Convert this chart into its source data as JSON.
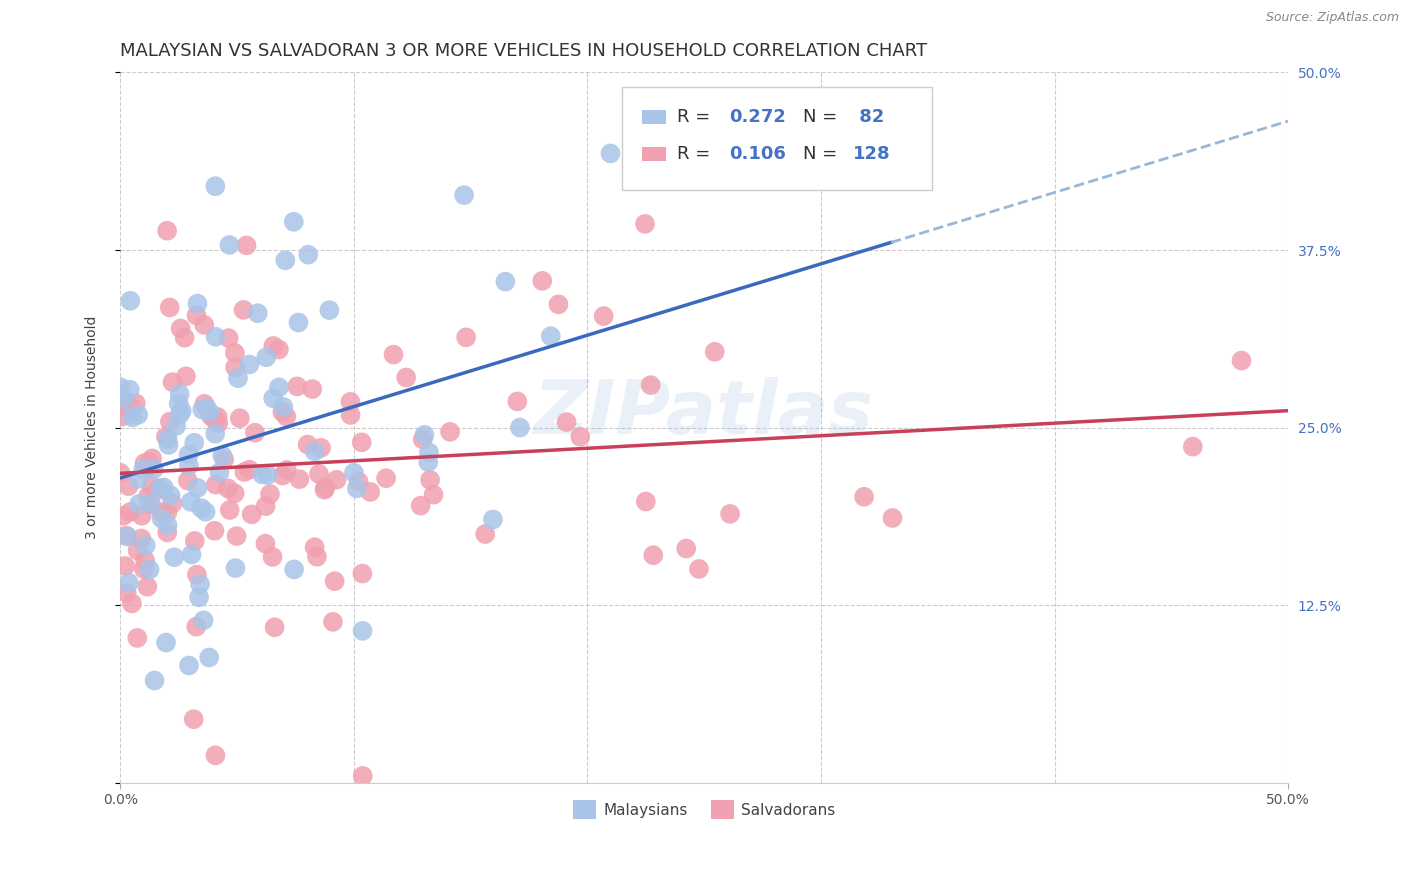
{
  "title": "MALAYSIAN VS SALVADORAN 3 OR MORE VEHICLES IN HOUSEHOLD CORRELATION CHART",
  "source": "Source: ZipAtlas.com",
  "ylabel": "3 or more Vehicles in Household",
  "xmin": 0.0,
  "xmax": 0.5,
  "ymin": 0.0,
  "ymax": 0.5,
  "ytick_values": [
    0.0,
    0.125,
    0.25,
    0.375,
    0.5
  ],
  "grid_color": "#cccccc",
  "background_color": "#ffffff",
  "malaysian_color": "#a8c4e8",
  "salvadoran_color": "#f0a0b0",
  "malaysian_line_color": "#3a6abf",
  "salvadoran_line_color": "#c8405a",
  "dashed_line_color": "#99b8d8",
  "R_color": "#4472c4",
  "N_color": "#4472c4",
  "title_fontsize": 13,
  "label_fontsize": 10,
  "tick_fontsize": 10,
  "legend_fontsize": 13,
  "right_label_color": "#4472c4",
  "watermark_color": "#8ab0d8",
  "watermark_alpha": 0.18
}
